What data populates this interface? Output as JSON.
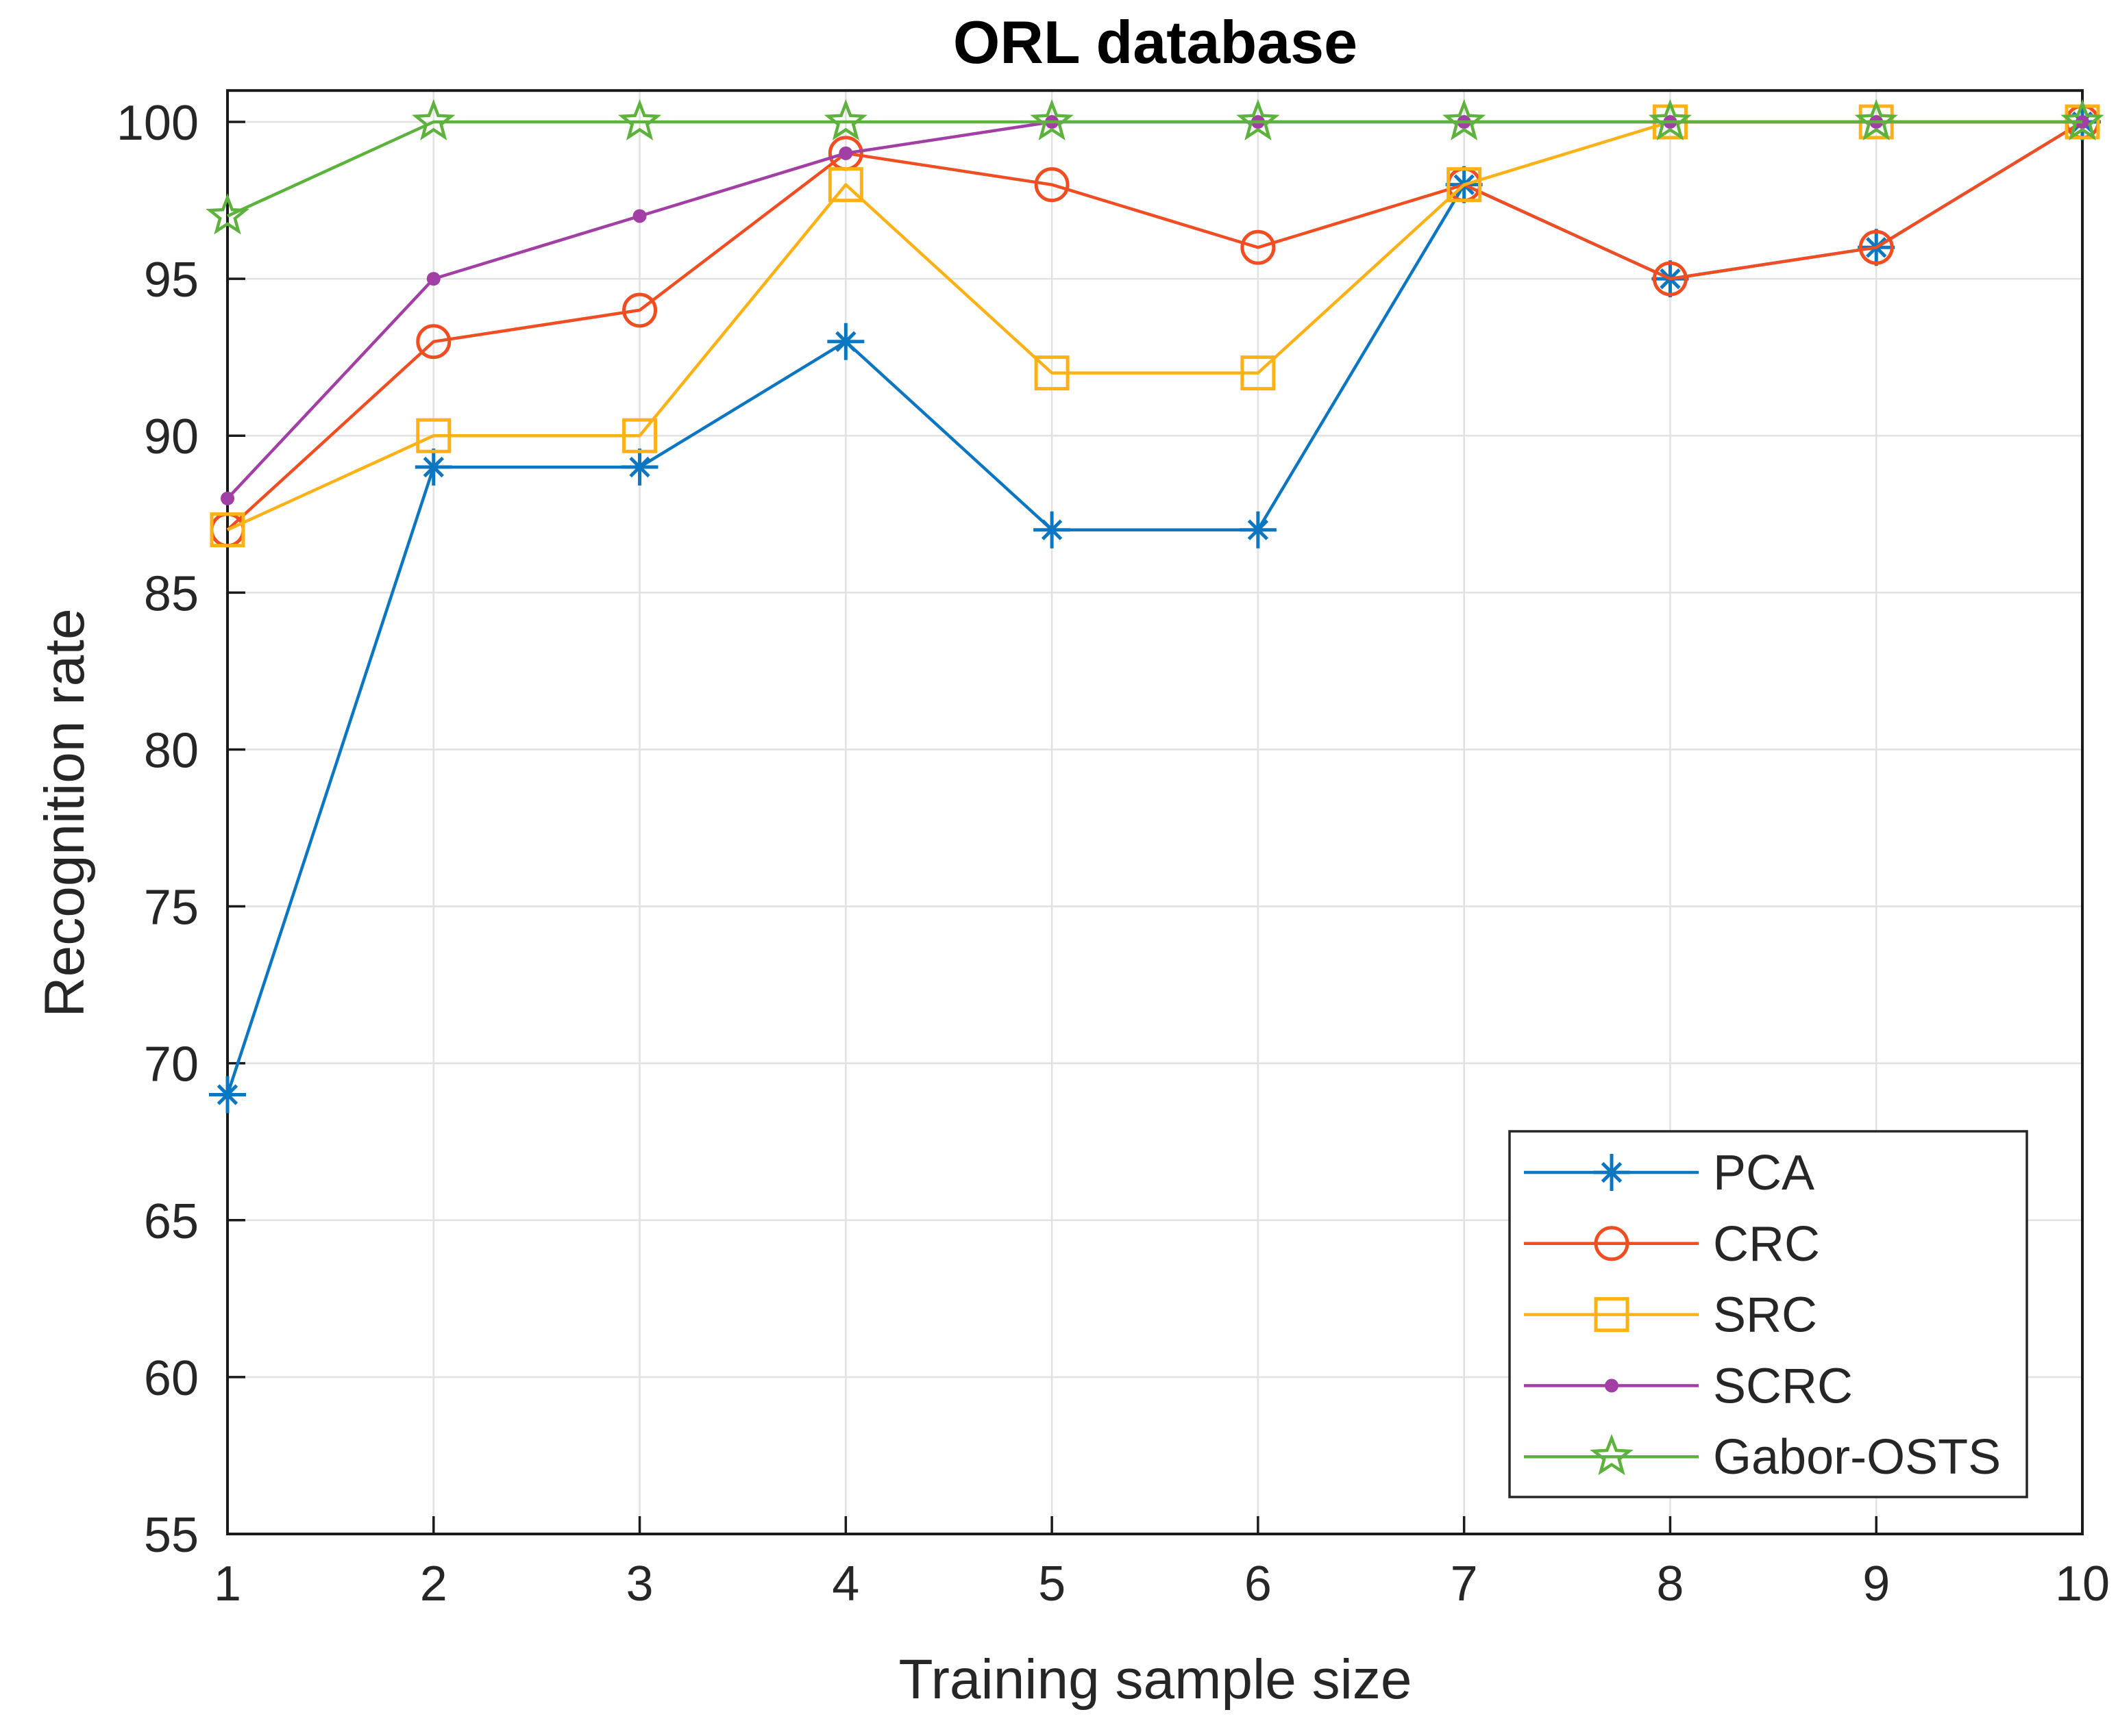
{
  "chart_data": {
    "type": "line",
    "title": "ORL database",
    "xlabel": "Training sample size",
    "ylabel": "Recognition rate",
    "x": [
      1,
      2,
      3,
      4,
      5,
      6,
      7,
      8,
      9,
      10
    ],
    "xticks": [
      1,
      2,
      3,
      4,
      5,
      6,
      7,
      8,
      9,
      10
    ],
    "yticks": [
      55,
      60,
      65,
      70,
      75,
      80,
      85,
      90,
      95,
      100
    ],
    "xlim": [
      1,
      10
    ],
    "ylim": [
      55,
      101
    ],
    "grid": true,
    "series": [
      {
        "name": "PCA",
        "color": "#0d76c1",
        "marker": "asterisk",
        "values": [
          69,
          89,
          89,
          93,
          87,
          87,
          98,
          95,
          96,
          100
        ]
      },
      {
        "name": "CRC",
        "color": "#f04e22",
        "marker": "circle",
        "values": [
          87,
          93,
          94,
          99,
          98,
          96,
          98,
          95,
          96,
          100
        ]
      },
      {
        "name": "SRC",
        "color": "#fcb216",
        "marker": "square",
        "values": [
          87,
          90,
          90,
          98,
          92,
          92,
          98,
          100,
          100,
          100
        ]
      },
      {
        "name": "SCRC",
        "color": "#a23fa5",
        "marker": "point",
        "values": [
          88,
          95,
          97,
          99,
          100,
          100,
          100,
          100,
          100,
          100
        ]
      },
      {
        "name": "Gabor-OSTS",
        "color": "#5cb23c",
        "marker": "pentagram",
        "values": [
          97,
          100,
          100,
          100,
          100,
          100,
          100,
          100,
          100,
          100
        ]
      }
    ],
    "legend": {
      "position": "lower-right",
      "entries": [
        "PCA",
        "CRC",
        "SRC",
        "SCRC",
        "Gabor-OSTS"
      ]
    },
    "colors": {
      "grid": "#e2e2e2",
      "axis": "#1a1a1a",
      "tick_text": "#262626",
      "legend_border": "#262626",
      "background": "#ffffff"
    }
  }
}
